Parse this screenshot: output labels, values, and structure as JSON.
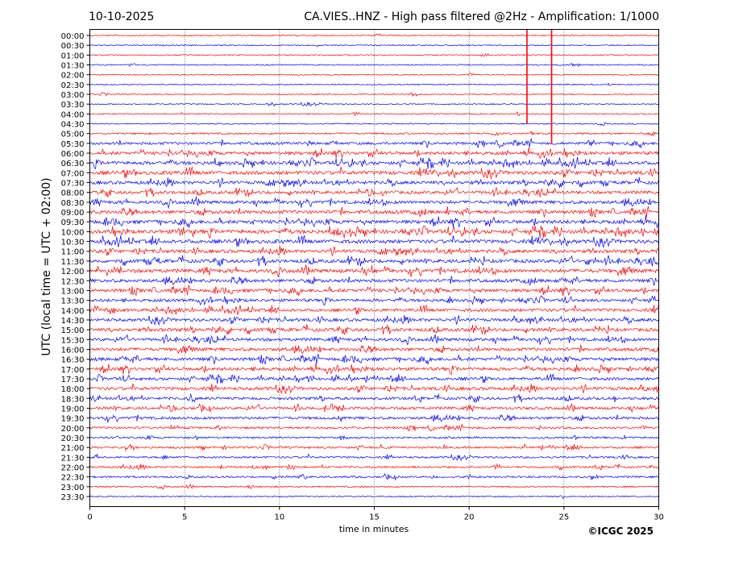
{
  "chart_data": {
    "type": "line",
    "title_left": "10-10-2025",
    "title": "CA.VIES..HNZ - High pass filtered @2Hz - Amplification: 1/1000",
    "xlabel": "time in minutes",
    "ylabel": "UTC (local time = UTC + 02:00)",
    "xlim": [
      0,
      30
    ],
    "x_ticks": [
      0,
      5,
      10,
      15,
      20,
      25,
      30
    ],
    "x_tick_labels": [
      "0",
      "5",
      "10",
      "15",
      "20",
      "25",
      "30"
    ],
    "grid": "vertical dotted",
    "y_tick_labels": [
      "00:00",
      "00:30",
      "01:00",
      "01:30",
      "02:00",
      "02:30",
      "03:00",
      "03:30",
      "04:00",
      "04:30",
      "05:00",
      "05:30",
      "06:00",
      "06:30",
      "07:00",
      "07:30",
      "08:00",
      "08:30",
      "09:00",
      "09:30",
      "10:00",
      "10:30",
      "11:00",
      "11:30",
      "12:00",
      "12:30",
      "13:00",
      "13:30",
      "14:00",
      "14:30",
      "15:00",
      "15:30",
      "16:00",
      "16:30",
      "17:00",
      "17:30",
      "18:00",
      "18:30",
      "19:00",
      "19:30",
      "20:00",
      "20:30",
      "21:00",
      "21:30",
      "22:00",
      "22:30",
      "23:00",
      "23:30"
    ],
    "trace_colors": [
      "#ff0000",
      "#0000ff"
    ],
    "row_activity": [
      0.04,
      0.05,
      0.04,
      0.04,
      0.04,
      0.04,
      0.04,
      0.05,
      0.06,
      0.05,
      0.2,
      0.45,
      0.6,
      0.65,
      0.7,
      0.6,
      0.55,
      0.6,
      0.65,
      0.7,
      0.75,
      0.7,
      0.6,
      0.65,
      0.7,
      0.6,
      0.6,
      0.5,
      0.55,
      0.55,
      0.6,
      0.55,
      0.6,
      0.6,
      0.6,
      0.5,
      0.55,
      0.45,
      0.45,
      0.45,
      0.3,
      0.25,
      0.3,
      0.25,
      0.25,
      0.25,
      0.12,
      0.08
    ],
    "large_events": [
      {
        "start_row": "00:00",
        "minute": 23.05,
        "rows_spanned": 9
      },
      {
        "start_row": "00:00",
        "minute": 24.35,
        "rows_spanned": 11
      }
    ]
  },
  "footer": {
    "copyright": "©ICGC 2025"
  }
}
